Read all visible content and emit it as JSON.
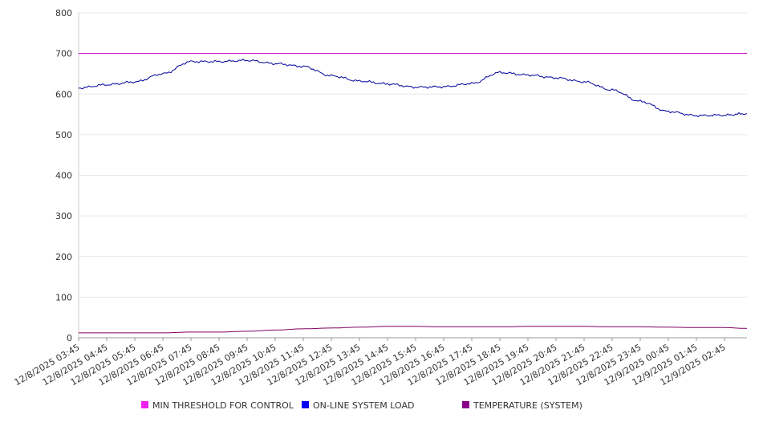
{
  "chart_data": {
    "type": "line",
    "ylim": [
      0,
      800
    ],
    "yticks": [
      0,
      100,
      200,
      300,
      400,
      500,
      600,
      700,
      800
    ],
    "grid": true,
    "legend_position": "bottom",
    "x_tick_labels": [
      "12/8/2025 03:45",
      "12/8/2025 04:45",
      "12/8/2025 05:45",
      "12/8/2025 06:45",
      "12/8/2025 07:45",
      "12/8/2025 08:45",
      "12/8/2025 09:45",
      "12/8/2025 10:45",
      "12/8/2025 11:45",
      "12/8/2025 12:45",
      "12/8/2025 13:45",
      "12/8/2025 14:45",
      "12/8/2025 15:45",
      "12/8/2025 16:45",
      "12/8/2025 17:45",
      "12/8/2025 18:45",
      "12/8/2025 19:45",
      "12/8/2025 20:45",
      "12/8/2025 21:45",
      "12/8/2025 22:45",
      "12/8/2025 23:45",
      "12/9/2025 00:45",
      "12/9/2025 01:45",
      "12/9/2025 02:45"
    ],
    "x_hours": [
      0,
      1,
      2,
      3,
      4,
      5,
      6,
      7,
      8,
      9,
      10,
      11,
      12,
      13,
      14,
      15,
      16,
      17,
      18,
      19,
      20,
      21,
      22,
      23,
      23.8
    ],
    "series": [
      {
        "name": "MIN THRESHOLD FOR CONTROL",
        "color": "#cc00cc",
        "legend_color": "#ee22ee",
        "values": [
          700,
          700,
          700,
          700,
          700,
          700,
          700,
          700,
          700,
          700,
          700,
          700,
          700,
          700,
          700,
          700,
          700,
          700,
          700,
          700,
          700,
          700,
          700,
          700,
          700
        ]
      },
      {
        "name": "ON-LINE SYSTEM LOAD",
        "color": "#000099",
        "legend_color": "#0000ee",
        "values": [
          615,
          623,
          630,
          650,
          680,
          680,
          683,
          675,
          668,
          645,
          632,
          625,
          617,
          618,
          626,
          653,
          647,
          640,
          630,
          610,
          582,
          557,
          547,
          548,
          552
        ]
      },
      {
        "name": "TEMPERATURE (SYSTEM)",
        "color": "#800060",
        "legend_color": "#880088",
        "values": [
          12,
          12,
          12,
          12,
          14,
          14,
          16,
          19,
          22,
          24,
          26,
          28,
          28,
          27,
          27,
          27,
          28,
          28,
          28,
          27,
          27,
          26,
          25,
          25,
          23
        ]
      }
    ]
  }
}
